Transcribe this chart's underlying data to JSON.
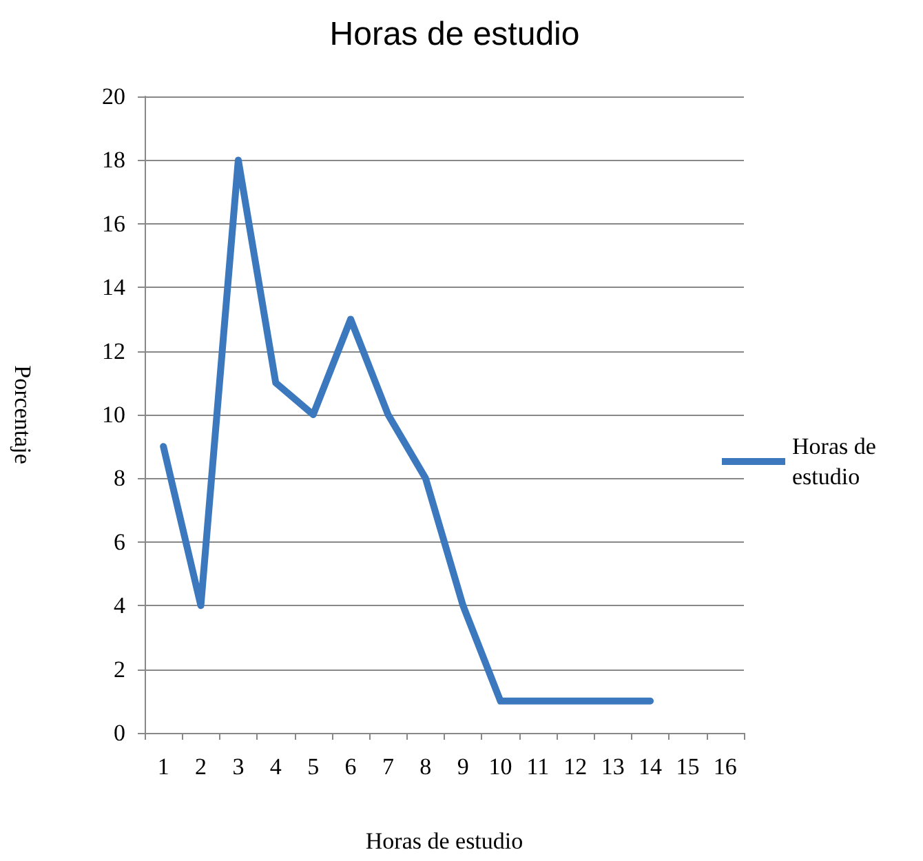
{
  "chart_data": {
    "type": "line",
    "title": "Horas de estudio",
    "xlabel": "Horas de estudio",
    "ylabel": "Porcentaje",
    "categories": [
      "1",
      "2",
      "3",
      "4",
      "5",
      "6",
      "7",
      "8",
      "9",
      "10",
      "11",
      "12",
      "13",
      "14",
      "15",
      "16"
    ],
    "series": [
      {
        "name": "Horas de estudio",
        "color": "#3c78bd",
        "values": [
          9,
          4,
          18,
          11,
          10,
          13,
          10,
          8,
          4,
          1,
          1,
          1,
          1,
          1,
          null,
          null
        ]
      }
    ],
    "ylim": [
      0,
      20
    ],
    "yticks": [
      0,
      2,
      4,
      6,
      8,
      10,
      12,
      14,
      16,
      18,
      20
    ],
    "grid": "y",
    "legend": "right",
    "marker": "none",
    "line_style": "solid"
  }
}
